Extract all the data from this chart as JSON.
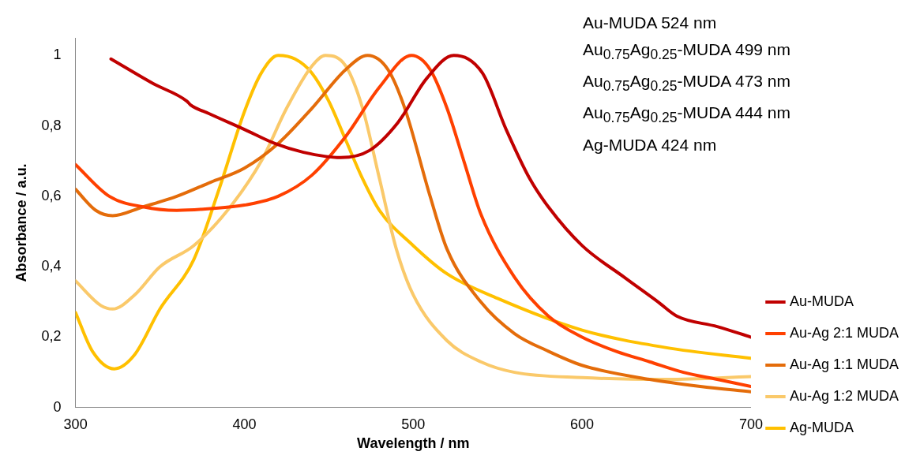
{
  "chart_data": {
    "type": "line",
    "xlabel": "Wavelength / nm",
    "ylabel": "Absorbance / a.u.",
    "xlim": [
      300,
      700
    ],
    "xticks": [
      300,
      400,
      500,
      600,
      700
    ],
    "ylim": [
      0,
      1.05
    ],
    "yticks": [
      0,
      {
        "value": 0.2,
        "label": "0,2"
      },
      {
        "value": 0.4,
        "label": "0,4"
      },
      {
        "value": 0.6,
        "label": "0,6"
      },
      {
        "value": 0.8,
        "label": "0,8"
      },
      1
    ],
    "grid": false,
    "legend": "right",
    "marker": "none",
    "line_style": "solid",
    "annotations": [
      "Au-MUDA 524 nm",
      "Au$_{0.75}$Ag$_{0.25}$-MUDA 499 nm",
      "Au$_{0.75}$Ag$_{0.25}$-MUDA 473 nm",
      "Au$_{0.75}$Ag$_{0.25}$-MUDA 444 nm",
      "Ag-MUDA 424 nm"
    ],
    "series": [
      {
        "name": "Au-MUDA",
        "color": "#c00000",
        "x": [
          321,
          346,
          366,
          368,
          379,
          400,
          418,
          435,
          457,
          474,
          491,
          508,
          524,
          541,
          555,
          569,
          580,
          600,
          625,
          645,
          656,
          680,
          700
        ],
        "values": [
          0.99,
          0.92,
          0.87,
          0.86,
          0.835,
          0.79,
          0.75,
          0.725,
          0.71,
          0.73,
          0.81,
          0.935,
          1.0,
          0.95,
          0.79,
          0.65,
          0.57,
          0.46,
          0.37,
          0.3,
          0.26,
          0.23,
          0.2
        ]
      },
      {
        "name": "Au-Ag 2:1 MUDA",
        "color": "#ff4000",
        "x": [
          300,
          320,
          340,
          360,
          380,
          400,
          420,
          440,
          460,
          480,
          499,
          510,
          520,
          530,
          540,
          560,
          580,
          600,
          620,
          640,
          660,
          680,
          700
        ],
        "values": [
          0.69,
          0.6,
          0.57,
          0.56,
          0.565,
          0.575,
          0.6,
          0.66,
          0.77,
          0.91,
          1.0,
          0.96,
          0.85,
          0.7,
          0.55,
          0.37,
          0.26,
          0.2,
          0.16,
          0.13,
          0.1,
          0.08,
          0.06
        ]
      },
      {
        "name": "Au-Ag 1:1 MUDA",
        "color": "#e46c0a",
        "x": [
          300,
          312,
          322,
          340,
          360,
          380,
          400,
          420,
          440,
          460,
          473,
          485,
          495,
          510,
          520,
          540,
          560,
          580,
          600,
          640,
          670,
          700
        ],
        "values": [
          0.62,
          0.56,
          0.545,
          0.57,
          0.6,
          0.64,
          0.68,
          0.75,
          0.85,
          0.96,
          1.0,
          0.96,
          0.85,
          0.6,
          0.45,
          0.3,
          0.21,
          0.16,
          0.12,
          0.08,
          0.06,
          0.045
        ]
      },
      {
        "name": "Au-Ag 1:2 MUDA",
        "color": "#fac96a",
        "x": [
          300,
          315,
          322,
          335,
          350,
          370,
          390,
          410,
          425,
          440,
          448,
          460,
          470,
          480,
          490,
          500,
          520,
          540,
          560,
          600,
          650,
          700
        ],
        "values": [
          0.36,
          0.29,
          0.28,
          0.32,
          0.4,
          0.46,
          0.56,
          0.7,
          0.85,
          0.97,
          1.0,
          0.97,
          0.85,
          0.65,
          0.45,
          0.32,
          0.19,
          0.13,
          0.1,
          0.085,
          0.08,
          0.088
        ]
      },
      {
        "name": "Ag-MUDA",
        "color": "#ffc000",
        "x": [
          300,
          310,
          323,
          335,
          350,
          370,
          385,
          400,
          410,
          420,
          430,
          440,
          450,
          460,
          470,
          480,
          500,
          520,
          550,
          600,
          650,
          700
        ],
        "values": [
          0.27,
          0.16,
          0.11,
          0.15,
          0.28,
          0.42,
          0.62,
          0.84,
          0.95,
          1.0,
          0.99,
          0.95,
          0.87,
          0.76,
          0.65,
          0.56,
          0.46,
          0.38,
          0.31,
          0.22,
          0.17,
          0.14
        ]
      }
    ]
  }
}
